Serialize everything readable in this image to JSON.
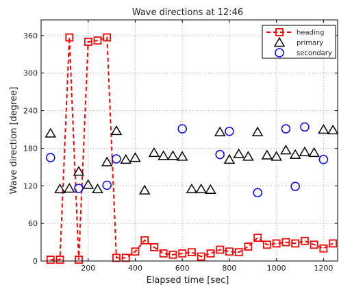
{
  "chart_data": {
    "type": "scatter",
    "title": "Wave directions at 12:46",
    "xlabel": "Elapsed time [sec]",
    "ylabel": "Wave direction [degree]",
    "xlim": [
      0,
      1260
    ],
    "ylim": [
      0,
      385
    ],
    "xticks": [
      200,
      400,
      600,
      800,
      1000,
      1200
    ],
    "yticks": [
      0,
      60,
      120,
      180,
      240,
      300,
      360
    ],
    "grid": true,
    "legend_position": "top-right",
    "series": [
      {
        "name": "heading",
        "style": "line-square",
        "color": "#ff0000",
        "x": [
          40,
          80,
          120,
          160,
          200,
          240,
          280,
          320,
          360,
          400,
          440,
          480,
          520,
          560,
          600,
          640,
          680,
          720,
          760,
          800,
          840,
          880,
          920,
          960,
          1000,
          1040,
          1080,
          1120,
          1160,
          1200,
          1240
        ],
        "y": [
          2,
          2,
          357,
          2,
          350,
          352,
          357,
          5,
          5,
          15,
          33,
          22,
          12,
          10,
          12,
          14,
          7,
          12,
          18,
          15,
          14,
          23,
          37,
          26,
          28,
          30,
          28,
          32,
          26,
          20,
          28
        ]
      },
      {
        "name": "primary",
        "style": "triangle",
        "color": "#000000",
        "x": [
          40,
          80,
          120,
          160,
          200,
          240,
          280,
          320,
          360,
          400,
          440,
          480,
          520,
          560,
          600,
          640,
          680,
          720,
          760,
          800,
          840,
          880,
          920,
          960,
          1000,
          1040,
          1080,
          1120,
          1160,
          1200,
          1240
        ],
        "y": [
          204,
          115,
          116,
          143,
          122,
          115,
          158,
          208,
          162,
          165,
          113,
          173,
          168,
          168,
          167,
          115,
          115,
          114,
          206,
          162,
          171,
          167,
          206,
          169,
          167,
          177,
          170,
          174,
          173,
          210,
          209
        ]
      },
      {
        "name": "secondary",
        "style": "circle",
        "color": "#0000ff",
        "x": [
          40,
          160,
          280,
          320,
          600,
          760,
          800,
          920,
          1040,
          1080,
          1120,
          1200
        ],
        "y": [
          165,
          116,
          121,
          163,
          211,
          170,
          207,
          109,
          211,
          119,
          214,
          162
        ]
      }
    ]
  }
}
